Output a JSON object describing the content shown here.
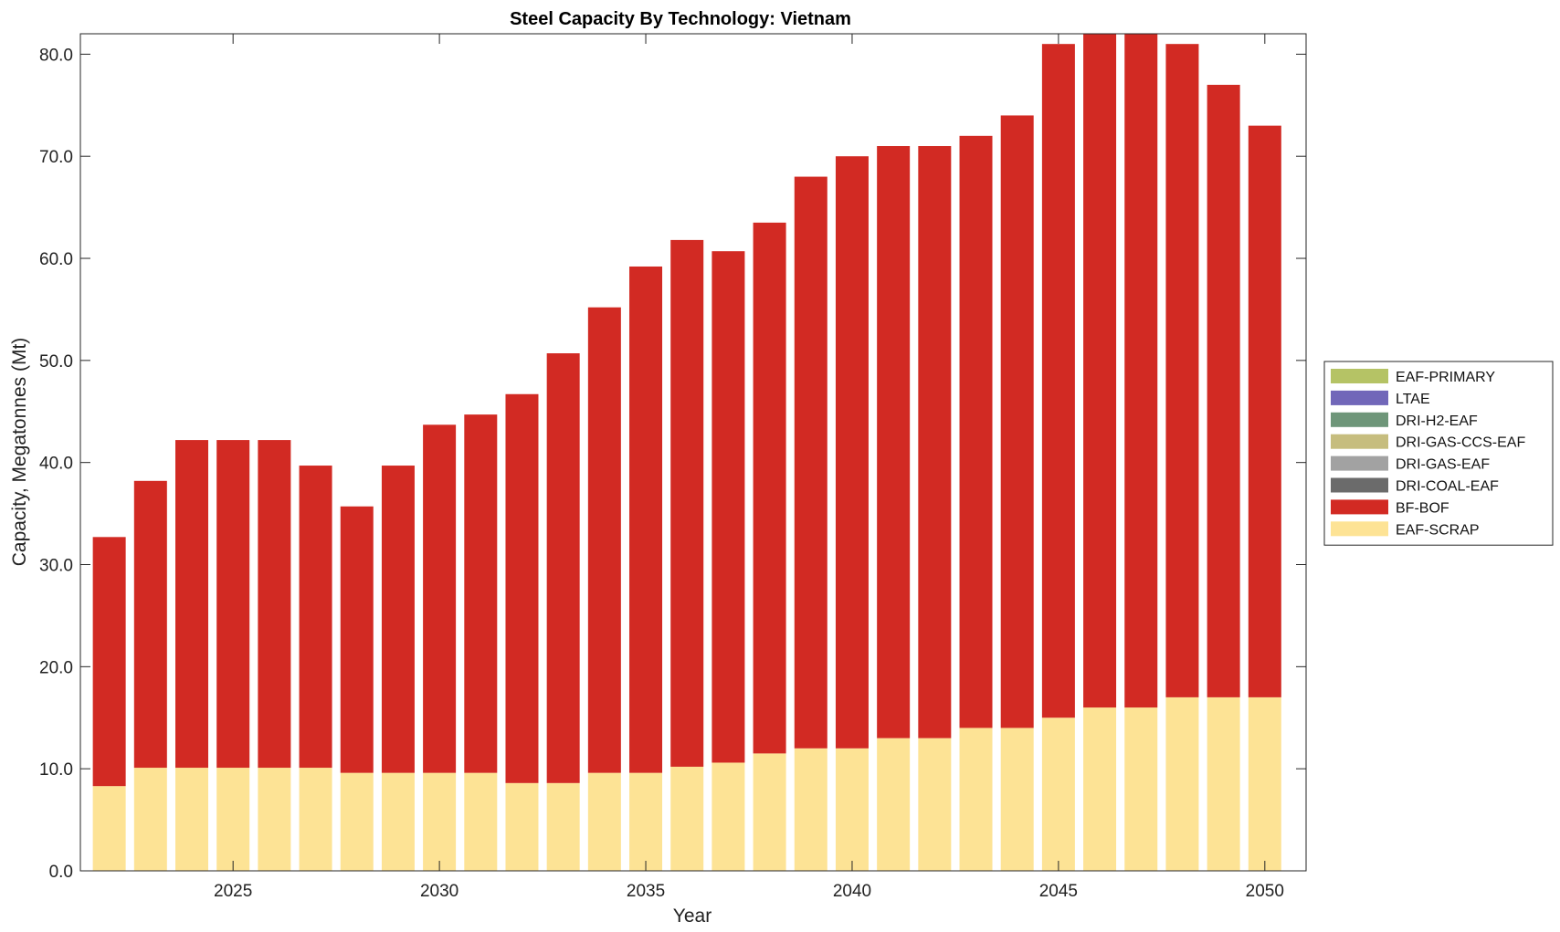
{
  "chart_data": {
    "type": "bar",
    "stacked": true,
    "title": "Steel Capacity By Technology: Vietnam",
    "xlabel": "Year",
    "ylabel": "Capacity, Megatonnes (Mt)",
    "xlim": [
      2021.3,
      2051.0
    ],
    "ylim": [
      0,
      82
    ],
    "x_ticks": [
      2025,
      2030,
      2035,
      2040,
      2045,
      2050
    ],
    "y_ticks": [
      0,
      10,
      20,
      30,
      40,
      50,
      60,
      70,
      80
    ],
    "y_tick_labels": [
      "0.0",
      "10.0",
      "20.0",
      "30.0",
      "40.0",
      "50.0",
      "60.0",
      "70.0",
      "80.0"
    ],
    "legend_position": "right",
    "categories": [
      2022,
      2023,
      2024,
      2025,
      2026,
      2027,
      2028,
      2029,
      2030,
      2031,
      2032,
      2033,
      2034,
      2035,
      2036,
      2037,
      2038,
      2039,
      2040,
      2041,
      2042,
      2043,
      2044,
      2045,
      2046,
      2047,
      2048,
      2049,
      2050
    ],
    "series": [
      {
        "name": "EAF-SCRAP",
        "color": "#FDE395",
        "values": [
          8.3,
          10.1,
          10.1,
          10.1,
          10.1,
          10.1,
          9.6,
          9.6,
          9.6,
          9.6,
          8.6,
          8.6,
          9.6,
          9.6,
          10.2,
          10.6,
          11.5,
          12.0,
          12.0,
          13.0,
          13.0,
          14.0,
          14.0,
          15.0,
          16.0,
          16.0,
          17.0,
          17.0,
          17.0
        ]
      },
      {
        "name": "BF-BOF",
        "color": "#D22A23",
        "values": [
          24.4,
          28.1,
          32.1,
          32.1,
          32.1,
          29.6,
          26.1,
          30.1,
          34.1,
          35.1,
          38.1,
          42.1,
          45.6,
          49.6,
          51.6,
          50.1,
          52.0,
          56.0,
          58.0,
          58.0,
          58.0,
          58.0,
          60.0,
          66.0,
          66.0,
          66.0,
          64.0,
          60.0,
          56.0
        ]
      },
      {
        "name": "DRI-COAL-EAF",
        "color": "#6B6B6B",
        "values": [
          0,
          0,
          0,
          0,
          0,
          0,
          0,
          0,
          0,
          0,
          0,
          0,
          0,
          0,
          0,
          0,
          0,
          0,
          0,
          0,
          0,
          0,
          0,
          0,
          0,
          0,
          0,
          0,
          0
        ]
      },
      {
        "name": "DRI-GAS-EAF",
        "color": "#A2A2A2",
        "values": [
          0,
          0,
          0,
          0,
          0,
          0,
          0,
          0,
          0,
          0,
          0,
          0,
          0,
          0,
          0,
          0,
          0,
          0,
          0,
          0,
          0,
          0,
          0,
          0,
          0,
          0,
          0,
          0,
          0
        ]
      },
      {
        "name": "DRI-GAS-CCS-EAF",
        "color": "#C6BD7E",
        "values": [
          0,
          0,
          0,
          0,
          0,
          0,
          0,
          0,
          0,
          0,
          0,
          0,
          0,
          0,
          0,
          0,
          0,
          0,
          0,
          0,
          0,
          0,
          0,
          0,
          0,
          0,
          0,
          0,
          0
        ]
      },
      {
        "name": "DRI-H2-EAF",
        "color": "#6E9679",
        "values": [
          0,
          0,
          0,
          0,
          0,
          0,
          0,
          0,
          0,
          0,
          0,
          0,
          0,
          0,
          0,
          0,
          0,
          0,
          0,
          0,
          0,
          0,
          0,
          0,
          0,
          0,
          0,
          0,
          0
        ]
      },
      {
        "name": "LTAE",
        "color": "#7167B9",
        "values": [
          0,
          0,
          0,
          0,
          0,
          0,
          0,
          0,
          0,
          0,
          0,
          0,
          0,
          0,
          0,
          0,
          0,
          0,
          0,
          0,
          0,
          0,
          0,
          0,
          0,
          0,
          0,
          0,
          0
        ]
      },
      {
        "name": "EAF-PRIMARY",
        "color": "#B5C365",
        "values": [
          0,
          0,
          0,
          0,
          0,
          0,
          0,
          0,
          0,
          0,
          0,
          0,
          0,
          0,
          0,
          0,
          0,
          0,
          0,
          0,
          0,
          0,
          0,
          0,
          0,
          0,
          0,
          0,
          0
        ]
      }
    ],
    "legend_order": [
      "EAF-PRIMARY",
      "LTAE",
      "DRI-H2-EAF",
      "DRI-GAS-CCS-EAF",
      "DRI-GAS-EAF",
      "DRI-COAL-EAF",
      "BF-BOF",
      "EAF-SCRAP"
    ]
  }
}
